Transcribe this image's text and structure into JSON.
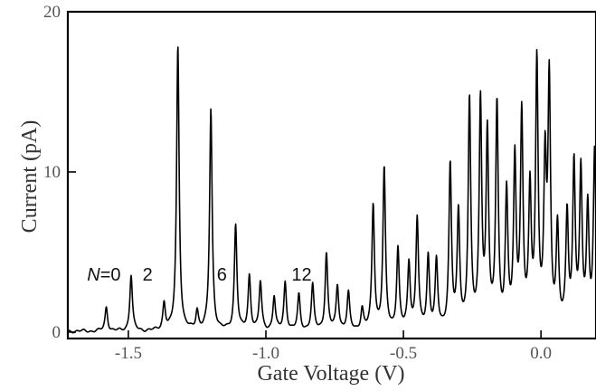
{
  "chart_data": {
    "type": "line",
    "title": "",
    "xlabel": "Gate Voltage  (V)",
    "ylabel": "Current  (pA)",
    "xlim": [
      -1.72,
      0.2
    ],
    "ylim": [
      -0.4,
      20
    ],
    "xticks": [
      -1.5,
      -1.0,
      -0.5,
      0.0
    ],
    "xtick_labels": [
      "-1.5",
      "-1.0",
      "-0.5",
      "0.0"
    ],
    "yticks": [
      0,
      10,
      20
    ],
    "ytick_labels": [
      "0",
      "10",
      "20"
    ],
    "grid": false,
    "legend": "none",
    "series": [
      {
        "baseline": 0.05,
        "peaks": [
          {
            "x": -1.58,
            "y": 1.5
          },
          {
            "x": -1.49,
            "y": 3.5
          },
          {
            "x": -1.37,
            "y": 1.7
          },
          {
            "x": -1.32,
            "y": 17.8
          },
          {
            "x": -1.25,
            "y": 1.2
          },
          {
            "x": -1.2,
            "y": 13.8
          },
          {
            "x": -1.11,
            "y": 6.6
          },
          {
            "x": -1.06,
            "y": 3.4
          },
          {
            "x": -1.02,
            "y": 3.0
          },
          {
            "x": -0.97,
            "y": 2.1
          },
          {
            "x": -0.93,
            "y": 3.0
          },
          {
            "x": -0.88,
            "y": 2.2
          },
          {
            "x": -0.83,
            "y": 2.8
          },
          {
            "x": -0.78,
            "y": 4.8
          },
          {
            "x": -0.74,
            "y": 2.8
          },
          {
            "x": -0.7,
            "y": 2.3
          },
          {
            "x": -0.65,
            "y": 1.3
          },
          {
            "x": -0.61,
            "y": 7.8
          },
          {
            "x": -0.57,
            "y": 10.0
          },
          {
            "x": -0.52,
            "y": 5.0
          },
          {
            "x": -0.48,
            "y": 4.1
          },
          {
            "x": -0.45,
            "y": 6.9
          },
          {
            "x": -0.41,
            "y": 4.5
          },
          {
            "x": -0.38,
            "y": 4.2
          },
          {
            "x": -0.33,
            "y": 10.2
          },
          {
            "x": -0.3,
            "y": 7.1
          },
          {
            "x": -0.26,
            "y": 14.2
          },
          {
            "x": -0.22,
            "y": 14.0
          },
          {
            "x": -0.195,
            "y": 11.9
          },
          {
            "x": -0.16,
            "y": 13.9
          },
          {
            "x": -0.125,
            "y": 8.2
          },
          {
            "x": -0.095,
            "y": 10.3
          },
          {
            "x": -0.07,
            "y": 13.1
          },
          {
            "x": -0.04,
            "y": 8.3
          },
          {
            "x": -0.015,
            "y": 16.4
          },
          {
            "x": 0.015,
            "y": 9.8
          },
          {
            "x": 0.03,
            "y": 15.0
          },
          {
            "x": 0.06,
            "y": 6.1
          },
          {
            "x": 0.095,
            "y": 7.0
          },
          {
            "x": 0.12,
            "y": 10.1
          },
          {
            "x": 0.145,
            "y": 9.6
          },
          {
            "x": 0.17,
            "y": 7.4
          },
          {
            "x": 0.195,
            "y": 11.0
          }
        ]
      }
    ],
    "annotations": [
      {
        "label_italic": "N",
        "text": "=0",
        "x": -1.65,
        "y": 3.6
      },
      {
        "text": "2",
        "x": -1.43,
        "y": 3.6
      },
      {
        "text": "6",
        "x": -1.16,
        "y": 3.6
      },
      {
        "text": "12",
        "x": -0.87,
        "y": 3.6
      }
    ]
  }
}
